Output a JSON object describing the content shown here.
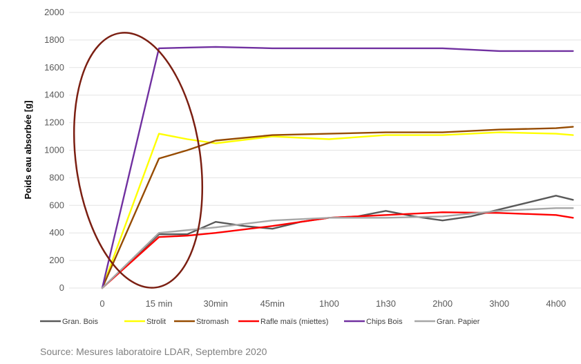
{
  "chart_data": {
    "type": "line",
    "ylabel": "Poids eau absorbée [g]",
    "xlabel": "",
    "categories": [
      "0",
      "15 min",
      "30min",
      "45min",
      "1h00",
      "1h30",
      "2h00",
      "3h00",
      "4h00"
    ],
    "yticks": [
      "0",
      "200",
      "400",
      "600",
      "800",
      "1000",
      "1200",
      "1400",
      "1600",
      "1800",
      "2000"
    ],
    "ylim": [
      0,
      2000
    ],
    "grid": true,
    "legend_position": "bottom",
    "series": [
      {
        "name": "Gran. Bois",
        "color": "#595959",
        "points": [
          [
            0,
            0
          ],
          [
            1,
            390
          ],
          [
            1.5,
            390
          ],
          [
            2,
            480
          ],
          [
            2.5,
            450
          ],
          [
            3,
            430
          ],
          [
            3.5,
            480
          ],
          [
            4,
            510
          ],
          [
            4.5,
            520
          ],
          [
            5,
            560
          ],
          [
            5.5,
            520
          ],
          [
            6,
            490
          ],
          [
            6.5,
            520
          ],
          [
            7,
            570
          ],
          [
            7.5,
            620
          ],
          [
            8,
            670
          ],
          [
            8.3,
            640
          ]
        ]
      },
      {
        "name": "Strolit",
        "color": "#ffff00",
        "points": [
          [
            0,
            0
          ],
          [
            1,
            1120
          ],
          [
            1.5,
            1080
          ],
          [
            2,
            1050
          ],
          [
            3,
            1100
          ],
          [
            4,
            1080
          ],
          [
            5,
            1110
          ],
          [
            6,
            1110
          ],
          [
            7,
            1130
          ],
          [
            8,
            1120
          ],
          [
            8.3,
            1110
          ]
        ]
      },
      {
        "name": "Stromash",
        "color": "#964b00",
        "points": [
          [
            0,
            0
          ],
          [
            1,
            940
          ],
          [
            1.5,
            1000
          ],
          [
            2,
            1070
          ],
          [
            3,
            1110
          ],
          [
            4,
            1120
          ],
          [
            5,
            1130
          ],
          [
            6,
            1130
          ],
          [
            7,
            1150
          ],
          [
            8,
            1160
          ],
          [
            8.3,
            1170
          ]
        ]
      },
      {
        "name": "Rafle maïs (miettes)",
        "color": "#ff0000",
        "points": [
          [
            0,
            0
          ],
          [
            1,
            370
          ],
          [
            1.5,
            380
          ],
          [
            2,
            400
          ],
          [
            3,
            450
          ],
          [
            4,
            510
          ],
          [
            5,
            530
          ],
          [
            6,
            550
          ],
          [
            7,
            545
          ],
          [
            8,
            530
          ],
          [
            8.3,
            510
          ]
        ]
      },
      {
        "name": "Chips Bois",
        "color": "#7030a0",
        "points": [
          [
            0,
            0
          ],
          [
            1,
            1740
          ],
          [
            2,
            1750
          ],
          [
            3,
            1740
          ],
          [
            4,
            1740
          ],
          [
            5,
            1740
          ],
          [
            6,
            1740
          ],
          [
            7,
            1720
          ],
          [
            8,
            1720
          ],
          [
            8.3,
            1720
          ]
        ]
      },
      {
        "name": "Gran. Papier",
        "color": "#a6a6a6",
        "points": [
          [
            0,
            0
          ],
          [
            1,
            400
          ],
          [
            2,
            440
          ],
          [
            3,
            490
          ],
          [
            4,
            510
          ],
          [
            5,
            510
          ],
          [
            6,
            520
          ],
          [
            7,
            560
          ],
          [
            8,
            580
          ],
          [
            8.3,
            580
          ]
        ]
      }
    ],
    "annotation": {
      "shape": "ellipse",
      "color": "#7b1f12"
    },
    "source": "Source: Mesures laboratoire LDAR, Septembre 2020"
  }
}
